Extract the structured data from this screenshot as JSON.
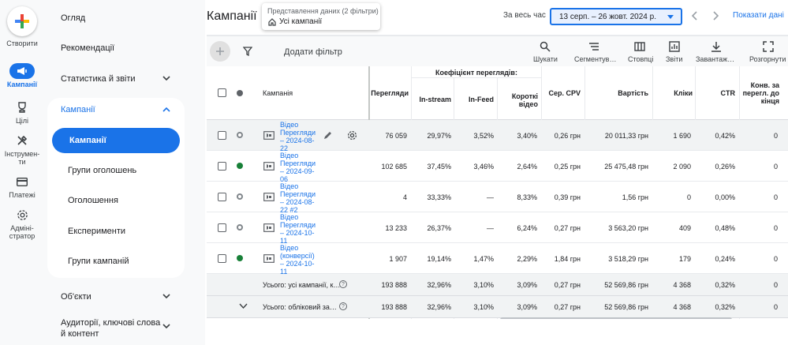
{
  "rail": {
    "create": "Створити",
    "campaigns": "Кампанії",
    "goals": "Цілі",
    "tools": "Інструмен-\nти",
    "billing": "Платежі",
    "admin": "Адміні-\nстратор"
  },
  "nav": {
    "overview": "Огляд",
    "recommendations": "Рекомендації",
    "stats": "Статистика й звіти",
    "campaigns_group": "Кампанії",
    "campaigns": "Кампанії",
    "ad_groups": "Групи оголошень",
    "ads": "Оголошення",
    "experiments": "Експерименти",
    "campaign_groups": "Групи кампаній",
    "objects": "Об'єкти",
    "audiences": "Аудиторії, ключові слова й контент"
  },
  "header": {
    "title": "Кампанії",
    "filter_label": "Представлення даних (2 фільтри)",
    "filter_value": "Усі кампанії",
    "period_label": "За весь час",
    "date_range": "13 серп. – 26 жовт. 2024 р.",
    "show_data": "Показати дані"
  },
  "toolbar": {
    "add_filter": "Додати фільтр",
    "search": "Шукати",
    "segment": "Сегментув…",
    "columns": "Стовпці",
    "reports": "Звіти",
    "download": "Завантаж…",
    "expand": "Розгорнути"
  },
  "table": {
    "headers": {
      "campaign": "Кампанія",
      "views": "Перегляди",
      "view_rate": "Коефіцієнт переглядів:",
      "instream": "In-stream",
      "infeed": "In-Feed",
      "shorts": "Короткі\nвідео",
      "cpv": "Сер. CPV",
      "cost": "Вартість",
      "clicks": "Кліки",
      "ctr": "CTR",
      "conv": "Конв. за\nперегл. до\nкінця"
    },
    "rows": [
      {
        "name": "Відео\nПерегляди\n– 2024-08-\n22",
        "status": "paused",
        "views": "76 059",
        "instream": "29,97%",
        "infeed": "3,52%",
        "shorts": "3,40%",
        "cpv": "0,26 грн",
        "cost": "20 011,33 грн",
        "clicks": "1 690",
        "ctr": "0,42%",
        "conv": "0"
      },
      {
        "name": "Відео\nПерегляди\n– 2024-09-\n06",
        "status": "active",
        "views": "102 685",
        "instream": "37,45%",
        "infeed": "3,46%",
        "shorts": "2,64%",
        "cpv": "0,25 грн",
        "cost": "25 475,48 грн",
        "clicks": "2 090",
        "ctr": "0,26%",
        "conv": "0"
      },
      {
        "name": "Відео\nПерегляди\n– 2024-08-\n22 #2",
        "status": "paused",
        "views": "4",
        "instream": "33,33%",
        "infeed": "—",
        "shorts": "8,33%",
        "cpv": "0,39 грн",
        "cost": "1,56 грн",
        "clicks": "0",
        "ctr": "0,00%",
        "conv": "0"
      },
      {
        "name": "Відео\nПерегляди\n– 2024-10-\n11",
        "status": "paused",
        "views": "13 233",
        "instream": "26,37%",
        "infeed": "—",
        "shorts": "6,24%",
        "cpv": "0,27 грн",
        "cost": "3 563,20 грн",
        "clicks": "409",
        "ctr": "0,48%",
        "conv": "0"
      },
      {
        "name": "Відео\n(конверсії)\n– 2024-10-\n11",
        "status": "active",
        "views": "1 907",
        "instream": "19,14%",
        "infeed": "1,47%",
        "shorts": "2,29%",
        "cpv": "1,84 грн",
        "cost": "3 518,29 грн",
        "clicks": "179",
        "ctr": "0,24%",
        "conv": "0"
      }
    ],
    "totals": [
      {
        "label": "Усього: усі кампанії, к…",
        "views": "193 888",
        "instream": "32,96%",
        "infeed": "3,10%",
        "shorts": "3,09%",
        "cpv": "0,27 грн",
        "cost": "52 569,86 грн",
        "clicks": "4 368",
        "ctr": "0,32%",
        "conv": "0"
      },
      {
        "label": "Усього: обліковий за…",
        "views": "193 888",
        "instream": "32,96%",
        "infeed": "3,10%",
        "shorts": "3,09%",
        "cpv": "0,27 грн",
        "cost": "52 569,86 грн",
        "clicks": "4 368",
        "ctr": "0,32%",
        "conv": "0"
      }
    ]
  },
  "colors": {
    "accent": "#1a73e8",
    "active_status": "#188038"
  }
}
